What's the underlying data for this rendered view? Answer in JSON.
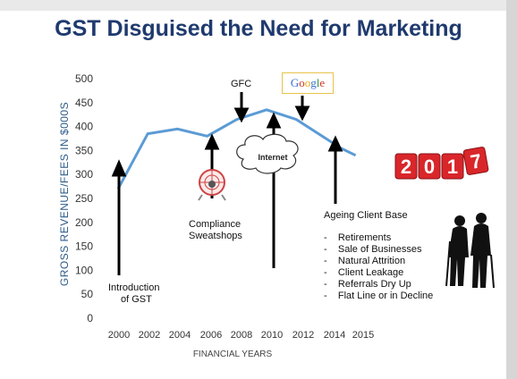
{
  "title": "GST Disguised the Need for Marketing",
  "chart_data": {
    "type": "line",
    "title": "GST Disguised the Need for Marketing",
    "xlabel": "FINANCIAL YEARS",
    "ylabel": "GROSS REVENUE/FEES IN $000S",
    "ylim": [
      0,
      500
    ],
    "y_ticks": [
      0,
      50,
      100,
      150,
      200,
      250,
      300,
      350,
      400,
      450,
      500
    ],
    "x_ticks": [
      "2000",
      "2002",
      "2004",
      "2006",
      "2008",
      "2010",
      "2012",
      "2014",
      "2015"
    ],
    "grid": false,
    "series": [
      {
        "x": [
          "2000",
          "2002",
          "2004",
          "2006",
          "2008",
          "2010",
          "2012",
          "2014",
          "2015",
          "2016"
        ],
        "values": [
          270,
          385,
          395,
          380,
          415,
          435,
          415,
          375,
          355,
          340
        ]
      }
    ],
    "annotations": {
      "introduction": [
        "Introduction",
        "of GST"
      ],
      "compliance": [
        "Compliance",
        "Sweatshops"
      ],
      "gfc": "GFC",
      "internet": "Internet",
      "google": "Google",
      "ageing": "Ageing Client Base",
      "ageing_list": [
        "Retirements",
        "Sale of Businesses",
        "Natural Attrition",
        "Client Leakage",
        "Referrals Dry Up",
        "Flat Line or in Decline"
      ],
      "badge_year": [
        "2",
        "0",
        "1",
        "7"
      ]
    }
  },
  "colors": {
    "title": "#1f3a6e",
    "line": "#5b9bd5",
    "badge": "#d9262a"
  }
}
